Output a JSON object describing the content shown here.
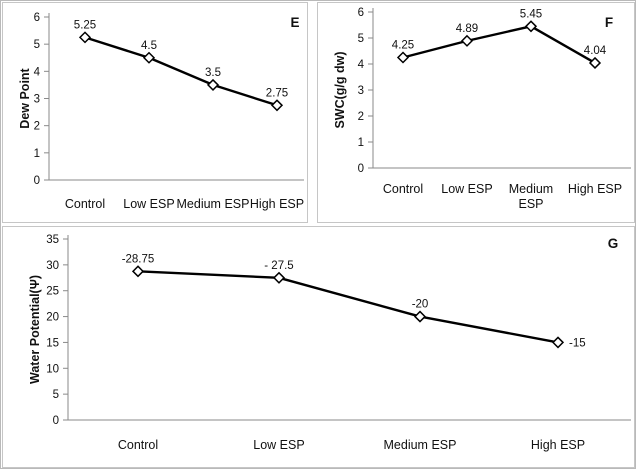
{
  "figure": {
    "background": "#ffffff",
    "border_color": "#c6c6c6",
    "axis_color": "#8a8a8a",
    "line_color": "#000000",
    "marker_style": "open-diamond"
  },
  "chart_data": [
    {
      "id": "E",
      "type": "line",
      "panel_label": "E",
      "title": "",
      "xlabel": "",
      "ylabel": "Dew Point",
      "categories": [
        "Control",
        "Low ESP",
        "Medium ESP",
        "High ESP"
      ],
      "categories_lines": [
        [
          "Control"
        ],
        [
          "Low ESP"
        ],
        [
          "Medium ESP"
        ],
        [
          "High ESP"
        ]
      ],
      "values": [
        5.25,
        4.5,
        3.5,
        2.75
      ],
      "data_labels": [
        "5.25",
        "4.5",
        "3.5",
        "2.75"
      ],
      "data_label_positions": [
        "above",
        "above",
        "above",
        "above"
      ],
      "ylim": [
        0,
        6
      ],
      "ytick_step": 1,
      "grid": false,
      "legend": "none"
    },
    {
      "id": "F",
      "type": "line",
      "panel_label": "F",
      "title": "",
      "xlabel": "",
      "ylabel": "SWC(g/g dw)",
      "categories": [
        "Control",
        "Low ESP",
        "Medium ESP",
        "High ESP"
      ],
      "categories_lines": [
        [
          "Control"
        ],
        [
          "Low ESP"
        ],
        [
          "Medium",
          "ESP"
        ],
        [
          "High ESP"
        ]
      ],
      "values": [
        4.25,
        4.89,
        5.45,
        4.04
      ],
      "data_labels": [
        "4.25",
        "4.89",
        "5.45",
        "4.04"
      ],
      "data_label_positions": [
        "above",
        "above",
        "above",
        "above"
      ],
      "ylim": [
        0,
        6
      ],
      "ytick_step": 1,
      "grid": false,
      "legend": "none"
    },
    {
      "id": "G",
      "type": "line",
      "panel_label": "G",
      "title": "",
      "xlabel": "",
      "ylabel": "Water Potential(Ψ)",
      "categories": [
        "Control",
        "Low ESP",
        "Medium ESP",
        "High ESP"
      ],
      "categories_lines": [
        [
          "Control"
        ],
        [
          "Low ESP"
        ],
        [
          "Medium ESP"
        ],
        [
          "High ESP"
        ]
      ],
      "values": [
        28.75,
        27.5,
        20,
        15
      ],
      "data_labels": [
        "-28.75",
        "- 27.5",
        "-20",
        "-15"
      ],
      "data_label_positions": [
        "above",
        "above",
        "above",
        "right"
      ],
      "ylim": [
        0,
        35
      ],
      "ytick_step": 5,
      "grid": false,
      "legend": "none"
    }
  ]
}
